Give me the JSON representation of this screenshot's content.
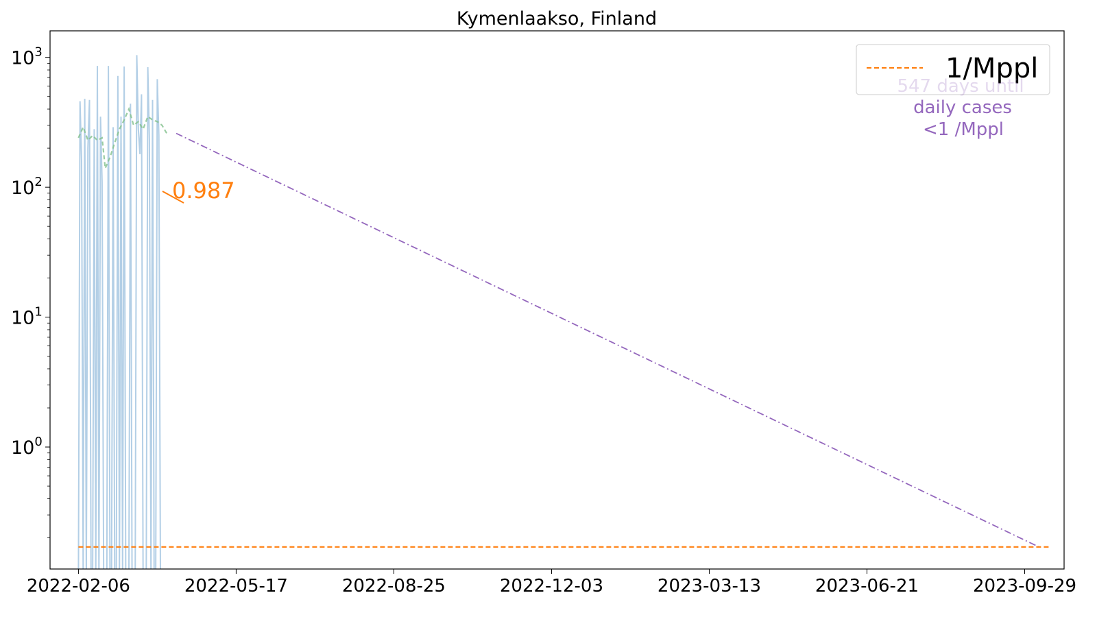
{
  "chart_data": {
    "type": "line",
    "title": "Kymenlaakso, Finland",
    "xlabel": "",
    "ylabel": "",
    "y_scale": "log",
    "ylim": [
      0.115,
      1600
    ],
    "xlim": [
      "2022-01-19",
      "2023-10-24"
    ],
    "x_ticks": [
      "2022-02-06",
      "2022-05-17",
      "2022-08-25",
      "2022-12-03",
      "2023-03-13",
      "2023-06-21",
      "2023-09-29"
    ],
    "y_ticks": [
      {
        "value": 1,
        "base": "10",
        "exp": "0"
      },
      {
        "value": 10,
        "base": "10",
        "exp": "1"
      },
      {
        "value": 100,
        "base": "10",
        "exp": "2"
      },
      {
        "value": 1000,
        "base": "10",
        "exp": "3"
      }
    ],
    "colors": {
      "daily": "#b3cfe6",
      "smoothed": "#82c08c",
      "projection": "#9467bd",
      "threshold": "#ff7f0e",
      "annotation": "#9467bd",
      "rate": "#ff7f0e"
    },
    "series": [
      {
        "role": "daily",
        "x": [
          "2022-02-06",
          "2022-02-07",
          "2022-02-08",
          "2022-02-09",
          "2022-02-10",
          "2022-02-11",
          "2022-02-12",
          "2022-02-13",
          "2022-02-14",
          "2022-02-15",
          "2022-02-16",
          "2022-02-17",
          "2022-02-18",
          "2022-02-19",
          "2022-02-20",
          "2022-02-21",
          "2022-02-22",
          "2022-02-23",
          "2022-02-24",
          "2022-02-25",
          "2022-02-26",
          "2022-02-27",
          "2022-02-28",
          "2022-03-01",
          "2022-03-02",
          "2022-03-03",
          "2022-03-04",
          "2022-03-05",
          "2022-03-06",
          "2022-03-07",
          "2022-03-08",
          "2022-03-09",
          "2022-03-10",
          "2022-03-11",
          "2022-03-12",
          "2022-03-13",
          "2022-03-14",
          "2022-03-15",
          "2022-03-16",
          "2022-03-17",
          "2022-03-18",
          "2022-03-19",
          "2022-03-20",
          "2022-03-21",
          "2022-03-22",
          "2022-03-23",
          "2022-03-24",
          "2022-03-25",
          "2022-03-26",
          "2022-03-27",
          "2022-03-28",
          "2022-03-29",
          "2022-03-30",
          "2022-03-31",
          "2022-04-01",
          "2022-04-02",
          "2022-04-03",
          "2022-04-04",
          "2022-04-05",
          "2022-04-06",
          "2022-04-07",
          "2022-04-08",
          "2022-04-09",
          "2022-04-10",
          "2022-04-11",
          "2022-04-12",
          "2022-04-13",
          "2022-04-14",
          "2022-04-15",
          "2022-04-16",
          "2022-04-17",
          "2022-04-18",
          "2022-04-19",
          "2022-04-20"
        ],
        "values": [
          0.1,
          460,
          160,
          0.1,
          480,
          0.1,
          200,
          470,
          0.1,
          0.1,
          280,
          0.1,
          860,
          0.1,
          350,
          110,
          0.1,
          0.1,
          0.1,
          860,
          0.1,
          0.1,
          290,
          0.1,
          0.1,
          720,
          0.1,
          350,
          0.1,
          850,
          0.1,
          0.1,
          0.1,
          440,
          0.1,
          0.1,
          0.1,
          1040,
          280,
          180,
          520,
          0.1,
          0.1,
          0.1,
          840,
          230,
          0.1,
          470,
          0.1,
          0.1,
          680,
          250,
          0.1,
          0.1,
          0.1,
          0.1,
          0.1,
          0.1,
          0.1,
          0.1,
          0.1,
          0.1,
          0.1,
          0.1,
          0.1,
          0.1,
          0.1,
          0.1,
          0.1,
          0.1,
          0.1,
          0.1,
          0.1,
          0.1
        ]
      },
      {
        "role": "smoothed",
        "x": [
          "2022-02-06",
          "2022-02-09",
          "2022-02-12",
          "2022-02-15",
          "2022-02-18",
          "2022-02-21",
          "2022-02-23",
          "2022-02-26",
          "2022-03-01",
          "2022-03-04",
          "2022-03-07",
          "2022-03-10",
          "2022-03-13",
          "2022-03-16",
          "2022-03-19",
          "2022-03-22",
          "2022-03-25",
          "2022-03-28",
          "2022-03-31",
          "2022-04-03",
          "2022-04-06",
          "2022-04-09"
        ],
        "values": [
          240,
          290,
          230,
          250,
          230,
          240,
          140,
          170,
          220,
          280,
          330,
          400,
          300,
          320,
          280,
          350,
          330,
          320,
          300,
          260,
          0,
          0
        ]
      },
      {
        "role": "projection",
        "x": [
          "2022-04-09",
          "2023-10-08"
        ],
        "values": [
          260,
          0.17
        ]
      },
      {
        "role": "threshold",
        "x": [
          "2022-02-06",
          "2023-10-15"
        ],
        "values": [
          0.17,
          0.17
        ]
      }
    ],
    "legend": {
      "position": "top-right",
      "entries": [
        {
          "label": "1/Mppl"
        }
      ]
    },
    "annotations": [
      {
        "id": "rate",
        "text": "0.987"
      },
      {
        "id": "days",
        "lines": [
          "547 days until",
          "daily cases",
          "<1 /Mppl"
        ]
      }
    ],
    "grid": false
  }
}
